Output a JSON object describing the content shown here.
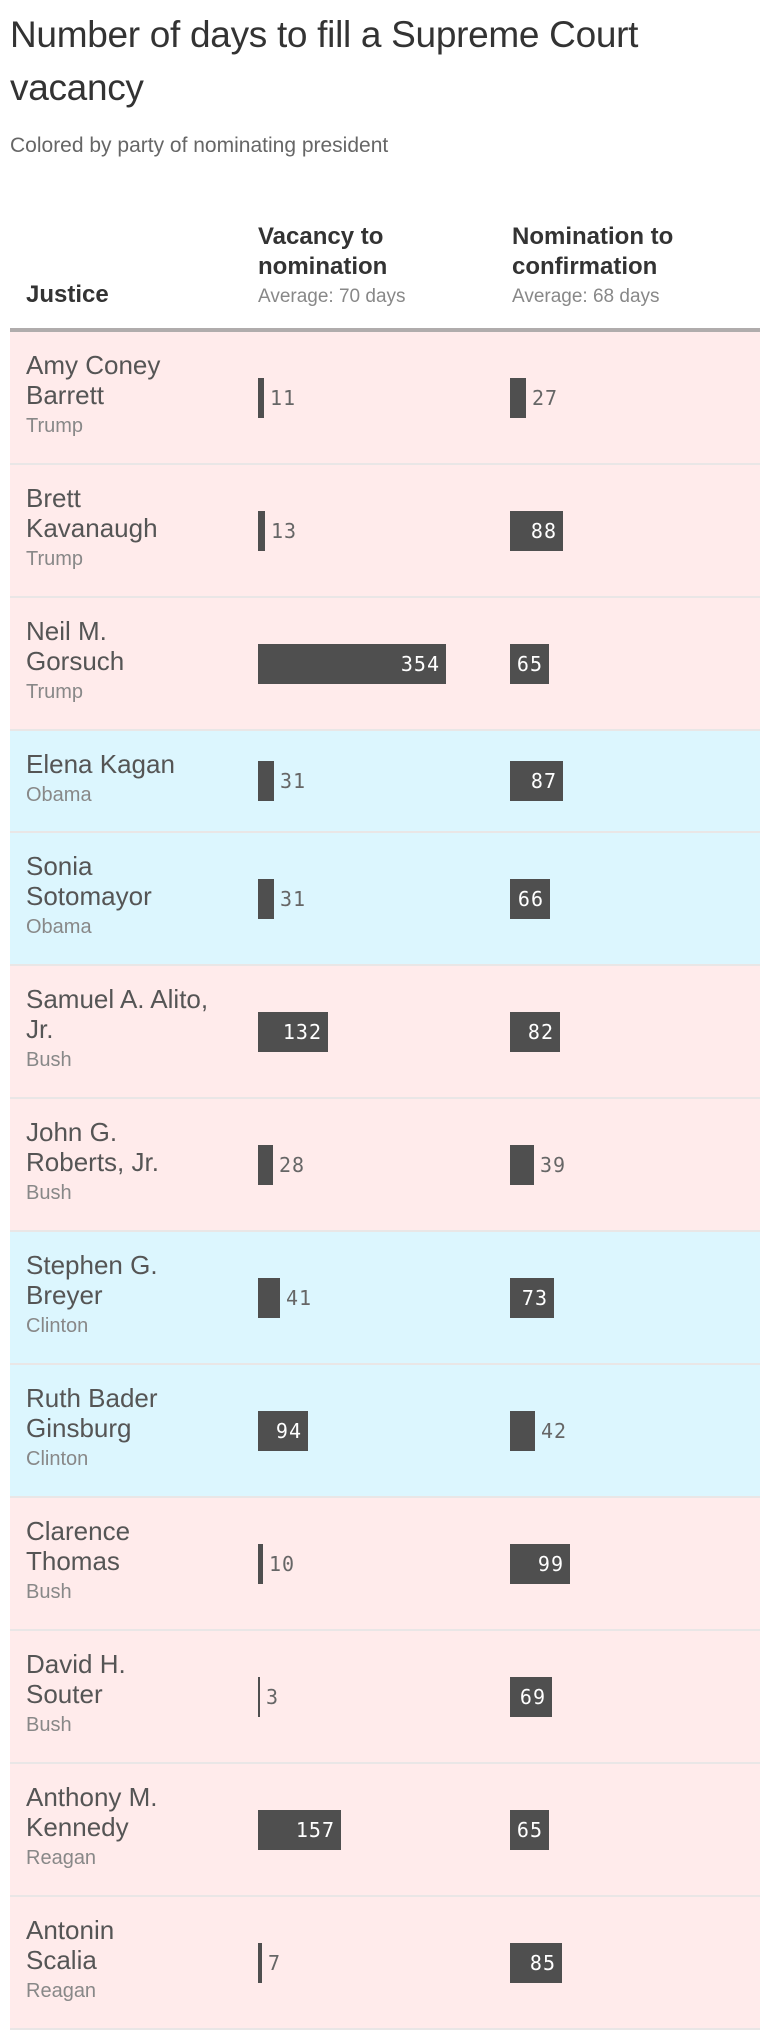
{
  "header": {
    "title": "Number of days to fill a Supreme Court vacancy",
    "subtitle": "Colored by party of nominating president"
  },
  "table": {
    "columns": {
      "justice": "Justice",
      "col1_title": "Vacancy to nomination",
      "col1_avg": "Average: 70 days",
      "col2_title": "Nomination to confirmation",
      "col2_avg": "Average: 68 days"
    },
    "colors": {
      "republican_bg": "#ffebeb",
      "democrat_bg": "#dcf6fe",
      "bar": "#4f4f4f"
    }
  },
  "chart_data": {
    "type": "table",
    "title": "Number of days to fill a Supreme Court vacancy",
    "subtitle": "Colored by party of nominating president",
    "columns": [
      "Justice",
      "Vacancy to nomination",
      "Nomination to confirmation"
    ],
    "averages": {
      "Vacancy to nomination": 70,
      "Nomination to confirmation": 68
    },
    "rows": [
      {
        "justice": "Amy Coney Barrett",
        "president": "Trump",
        "party": "R",
        "vacancy_to_nomination": 11,
        "nomination_to_confirmation": 27
      },
      {
        "justice": "Brett Kavanaugh",
        "president": "Trump",
        "party": "R",
        "vacancy_to_nomination": 13,
        "nomination_to_confirmation": 88
      },
      {
        "justice": "Neil M. Gorsuch",
        "president": "Trump",
        "party": "R",
        "vacancy_to_nomination": 354,
        "nomination_to_confirmation": 65
      },
      {
        "justice": "Elena Kagan",
        "president": "Obama",
        "party": "D",
        "vacancy_to_nomination": 31,
        "nomination_to_confirmation": 87
      },
      {
        "justice": "Sonia Sotomayor",
        "president": "Obama",
        "party": "D",
        "vacancy_to_nomination": 31,
        "nomination_to_confirmation": 66
      },
      {
        "justice": "Samuel A. Alito, Jr.",
        "president": "Bush",
        "party": "R",
        "vacancy_to_nomination": 132,
        "nomination_to_confirmation": 82
      },
      {
        "justice": "John G. Roberts, Jr.",
        "president": "Bush",
        "party": "R",
        "vacancy_to_nomination": 28,
        "nomination_to_confirmation": 39
      },
      {
        "justice": "Stephen G. Breyer",
        "president": "Clinton",
        "party": "D",
        "vacancy_to_nomination": 41,
        "nomination_to_confirmation": 73
      },
      {
        "justice": "Ruth Bader Ginsburg",
        "president": "Clinton",
        "party": "D",
        "vacancy_to_nomination": 94,
        "nomination_to_confirmation": 42
      },
      {
        "justice": "Clarence Thomas",
        "president": "Bush",
        "party": "R",
        "vacancy_to_nomination": 10,
        "nomination_to_confirmation": 99
      },
      {
        "justice": "David H. Souter",
        "president": "Bush",
        "party": "R",
        "vacancy_to_nomination": 3,
        "nomination_to_confirmation": 69
      },
      {
        "justice": "Anthony M. Kennedy",
        "president": "Reagan",
        "party": "R",
        "vacancy_to_nomination": 157,
        "nomination_to_confirmation": 65
      },
      {
        "justice": "Antonin Scalia",
        "president": "Reagan",
        "party": "R",
        "vacancy_to_nomination": 7,
        "nomination_to_confirmation": 85
      }
    ]
  },
  "rows": [
    {
      "name": "Amy Coney Barrett",
      "president": "Trump",
      "party": "R",
      "lines": 3,
      "v1": "11",
      "v2": "27"
    },
    {
      "name": "Brett Kavanaugh",
      "president": "Trump",
      "party": "R",
      "lines": 3,
      "v1": "13",
      "v2": "88"
    },
    {
      "name": "Neil M. Gorsuch",
      "president": "Trump",
      "party": "R",
      "lines": 3,
      "v1": "354",
      "v2": "65"
    },
    {
      "name": "Elena Kagan",
      "president": "Obama",
      "party": "D",
      "lines": 2,
      "v1": "31",
      "v2": "87"
    },
    {
      "name": "Sonia Sotomayor",
      "president": "Obama",
      "party": "D",
      "lines": 3,
      "v1": "31",
      "v2": "66"
    },
    {
      "name": "Samuel A. Alito, Jr.",
      "president": "Bush",
      "party": "R",
      "lines": 3,
      "v1": "132",
      "v2": "82"
    },
    {
      "name": "John G. Roberts, Jr.",
      "president": "Bush",
      "party": "R",
      "lines": 3,
      "v1": "28",
      "v2": "39"
    },
    {
      "name": "Stephen G. Breyer",
      "president": "Clinton",
      "party": "D",
      "lines": 3,
      "v1": "41",
      "v2": "73"
    },
    {
      "name": "Ruth Bader Ginsburg",
      "president": "Clinton",
      "party": "D",
      "lines": 3,
      "v1": "94",
      "v2": "42"
    },
    {
      "name": "Clarence Thomas",
      "president": "Bush",
      "party": "R",
      "lines": 3,
      "v1": "10",
      "v2": "99"
    },
    {
      "name": "David H. Souter",
      "president": "Bush",
      "party": "R",
      "lines": 3,
      "v1": "3",
      "v2": "69"
    },
    {
      "name": "Anthony M. Kennedy",
      "president": "Reagan",
      "party": "R",
      "lines": 3,
      "v1": "157",
      "v2": "65"
    },
    {
      "name": "Antonin Scalia",
      "president": "Reagan",
      "party": "R",
      "lines": 3,
      "v1": "7",
      "v2": "85"
    }
  ]
}
